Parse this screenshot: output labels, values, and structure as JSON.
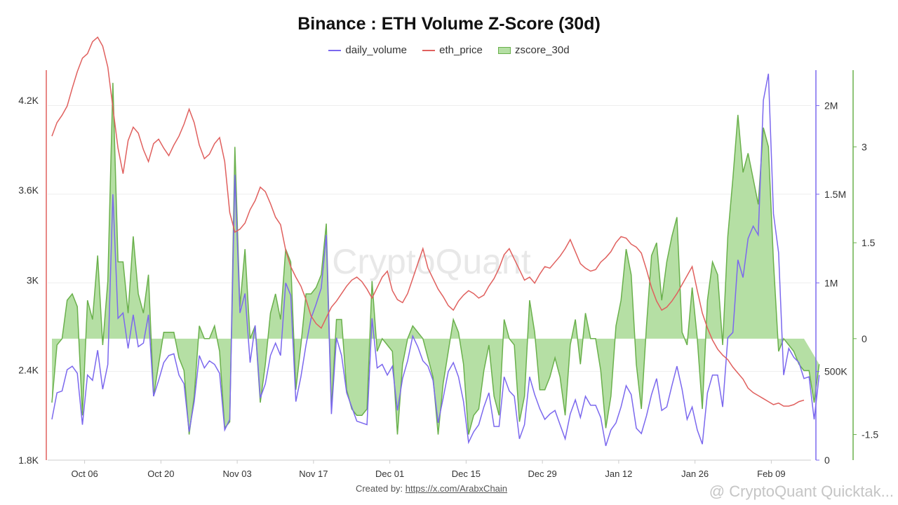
{
  "title": "Binance : ETH Volume Z-Score (30d)",
  "legend": [
    {
      "name": "daily_volume",
      "color": "#7b68ee",
      "kind": "line"
    },
    {
      "name": "eth_price",
      "color": "#e0605e",
      "kind": "line"
    },
    {
      "name": "zscore_30d",
      "color": "#6ab04c",
      "kind": "area"
    }
  ],
  "footer": {
    "label": "Created by: ",
    "link": "https://x.com/ArabxChain"
  },
  "watermark": "CryptoQuant",
  "corner_watermark": "@ CryptoQuant Quicktak...",
  "chart_data": {
    "type": "line",
    "title": "Binance : ETH Volume Z-Score (30d)",
    "x_start": "2024-09-30",
    "x_end": "2025-02-15",
    "x_ticks": [
      "Oct 06",
      "Oct 20",
      "Nov 03",
      "Nov 17",
      "Dec 01",
      "Dec 15",
      "Dec 29",
      "Jan 12",
      "Jan 26",
      "Feb 09"
    ],
    "y_left": {
      "label": "",
      "ticks": [
        "1.8K",
        "2.4K",
        "3K",
        "3.6K",
        "4.2K"
      ],
      "range": [
        1800,
        4400
      ]
    },
    "y_right_volume": {
      "label": "",
      "ticks": [
        "0",
        "500K",
        "1M",
        "1.5M",
        "2M"
      ],
      "range": [
        0,
        2200000
      ]
    },
    "y_right_zscore": {
      "label": "",
      "ticks": [
        "-1.5",
        "0",
        "1.5",
        "3"
      ],
      "range": [
        -1.9,
        4.2
      ]
    },
    "grid": true,
    "legend_position": "top-center",
    "series": [
      {
        "name": "eth_price",
        "axis": "left",
        "color": "#e0605e",
        "values": [
          3960,
          4050,
          4100,
          4160,
          4280,
          4390,
          4480,
          4510,
          4590,
          4620,
          4560,
          4420,
          4150,
          3880,
          3710,
          3930,
          4020,
          3980,
          3870,
          3790,
          3910,
          3940,
          3880,
          3830,
          3900,
          3960,
          4040,
          4140,
          4050,
          3900,
          3810,
          3840,
          3910,
          3950,
          3790,
          3450,
          3320,
          3340,
          3380,
          3470,
          3530,
          3620,
          3590,
          3510,
          3420,
          3370,
          3200,
          3090,
          3020,
          2960,
          2870,
          2760,
          2710,
          2680,
          2750,
          2820,
          2860,
          2910,
          2960,
          3000,
          3020,
          2990,
          2940,
          2880,
          2950,
          3020,
          3060,
          2930,
          2870,
          2850,
          2910,
          3010,
          3110,
          3210,
          3080,
          3010,
          2940,
          2890,
          2830,
          2800,
          2860,
          2900,
          2930,
          2910,
          2880,
          2900,
          2960,
          3010,
          3080,
          3170,
          3210,
          3140,
          3070,
          3000,
          3020,
          2980,
          3040,
          3090,
          3080,
          3120,
          3160,
          3210,
          3270,
          3190,
          3110,
          3080,
          3060,
          3070,
          3120,
          3150,
          3190,
          3250,
          3290,
          3280,
          3240,
          3220,
          3180,
          3070,
          2950,
          2860,
          2800,
          2820,
          2860,
          2910,
          2970,
          3030,
          3090,
          2930,
          2780,
          2680,
          2600,
          2540,
          2500,
          2470,
          2420,
          2380,
          2340,
          2280,
          2250,
          2230,
          2210,
          2190,
          2170,
          2180,
          2160,
          2160,
          2170,
          2190,
          2200
        ]
      },
      {
        "name": "daily_volume",
        "axis": "right",
        "color": "#7b68ee",
        "values": [
          230000,
          380000,
          390000,
          510000,
          530000,
          490000,
          200000,
          480000,
          450000,
          620000,
          400000,
          540000,
          1500000,
          800000,
          830000,
          630000,
          820000,
          640000,
          660000,
          820000,
          360000,
          450000,
          550000,
          590000,
          600000,
          480000,
          430000,
          160000,
          330000,
          590000,
          520000,
          560000,
          540000,
          490000,
          170000,
          230000,
          1610000,
          830000,
          940000,
          550000,
          760000,
          350000,
          430000,
          590000,
          660000,
          590000,
          1000000,
          930000,
          330000,
          470000,
          650000,
          800000,
          880000,
          970000,
          1270000,
          260000,
          690000,
          590000,
          380000,
          300000,
          220000,
          210000,
          200000,
          800000,
          520000,
          540000,
          480000,
          530000,
          280000,
          460000,
          560000,
          700000,
          640000,
          560000,
          530000,
          450000,
          210000,
          350000,
          500000,
          550000,
          470000,
          330000,
          100000,
          160000,
          200000,
          300000,
          380000,
          190000,
          190000,
          470000,
          390000,
          360000,
          120000,
          200000,
          470000,
          370000,
          290000,
          230000,
          260000,
          280000,
          200000,
          120000,
          260000,
          340000,
          240000,
          360000,
          310000,
          310000,
          240000,
          80000,
          170000,
          210000,
          300000,
          420000,
          370000,
          180000,
          150000,
          250000,
          370000,
          460000,
          280000,
          300000,
          420000,
          530000,
          400000,
          230000,
          300000,
          170000,
          90000,
          380000,
          480000,
          480000,
          300000,
          690000,
          720000,
          1130000,
          1030000,
          1250000,
          1320000,
          1270000,
          2030000,
          2180000,
          1390000,
          1170000,
          480000,
          630000,
          580000,
          550000,
          460000,
          470000,
          230000,
          480000
        ]
      },
      {
        "name": "zscore_30d",
        "axis": "right",
        "color": "#6ab04c",
        "values": [
          -1.0,
          -0.1,
          0,
          0.6,
          0.7,
          0.5,
          -1.2,
          0.6,
          0.3,
          1.3,
          -0.1,
          0.9,
          4.0,
          1.2,
          1.2,
          0.4,
          1.6,
          0.7,
          0.4,
          1.0,
          -0.9,
          -0.4,
          0.1,
          0.1,
          0.1,
          -0.3,
          -0.5,
          -1.5,
          -0.9,
          0.2,
          0.0,
          0.0,
          0.2,
          -0.2,
          -1.4,
          -1.3,
          3.0,
          0.5,
          1.4,
          0,
          0.2,
          -1.0,
          -0.4,
          0.4,
          0.7,
          0.3,
          1.4,
          1.2,
          -0.8,
          -0.1,
          0.7,
          0.7,
          0.8,
          1.0,
          1.8,
          -1.1,
          0.3,
          0.3,
          -0.8,
          -1.1,
          -1.2,
          -1.2,
          -1.1,
          0.9,
          -0.2,
          0,
          -0.1,
          -0.2,
          -1.5,
          -0.4,
          0,
          0.2,
          0.1,
          0,
          -0.3,
          -0.6,
          -1.5,
          -0.7,
          -0.2,
          0.3,
          0.1,
          -0.4,
          -1.5,
          -1.2,
          -1.1,
          -0.5,
          -0.1,
          -0.9,
          -1.2,
          0.3,
          0.0,
          -0.1,
          -1.3,
          -0.9,
          0.6,
          0.1,
          -0.8,
          -0.8,
          -0.6,
          -0.3,
          -0.6,
          -1.2,
          -0.1,
          0.3,
          -0.4,
          0.4,
          0,
          0,
          -0.5,
          -1.4,
          -0.9,
          0.2,
          0.6,
          1.4,
          1.0,
          -0.4,
          -1.1,
          0.2,
          1.3,
          1.5,
          0.6,
          1.2,
          1.6,
          1.9,
          0.1,
          -0.1,
          0.8,
          0.0,
          -1.1,
          0.6,
          1.2,
          1.0,
          -0.1,
          1.6,
          2.5,
          3.5,
          2.6,
          2.9,
          2.5,
          2.1,
          3.3,
          3.0,
          1.2,
          -0.2,
          0,
          -0.1,
          -0.2,
          -0.4,
          -0.5,
          -0.5,
          -1.0,
          -0.4
        ]
      }
    ]
  }
}
